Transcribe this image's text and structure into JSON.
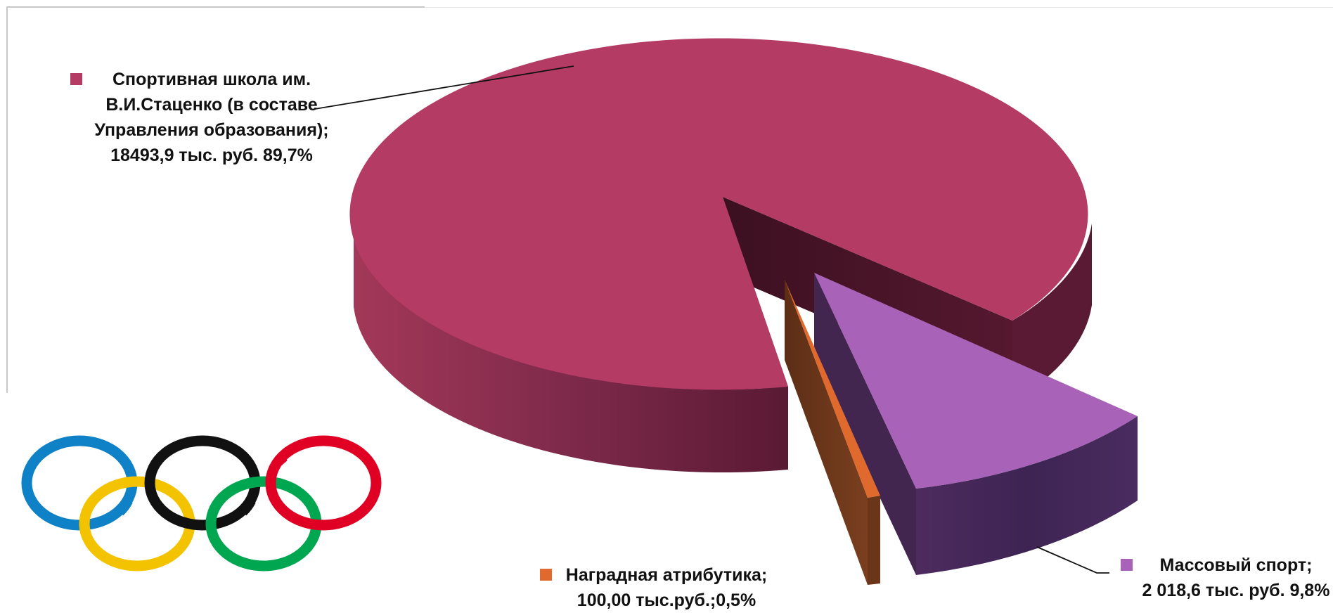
{
  "colors": {
    "accent_school": "#b43c64",
    "accent_mass": "#a862b8",
    "accent_award": "#e0692e",
    "ring_blue": "#0f81c7",
    "ring_yellow": "#f4c300",
    "ring_black": "#111111",
    "ring_green": "#00a650",
    "ring_red": "#df0024"
  },
  "chart_data": {
    "type": "pie",
    "style": "3d-exploded",
    "title": "",
    "slices": [
      {
        "label_lines": [
          "Спортивная школа им.",
          "В.И.Стаценко (в составе",
          "Управления образования);",
          "18493,9 тыс. руб. 89,7%"
        ],
        "value": 18493.9,
        "percent": 89.7,
        "color": "#b43c64"
      },
      {
        "label_lines": [
          "Массовый спорт;",
          "2 018,6 тыс. руб. 9,8%"
        ],
        "value": 2018.6,
        "percent": 9.8,
        "color": "#a862b8"
      },
      {
        "label_lines": [
          "Наградная атрибутика;",
          "100,00 тыс.руб.;0,5%"
        ],
        "value": 100.0,
        "percent": 0.5,
        "color": "#e0692e"
      }
    ]
  },
  "decoration": {
    "image": "olympic-rings-icon"
  }
}
